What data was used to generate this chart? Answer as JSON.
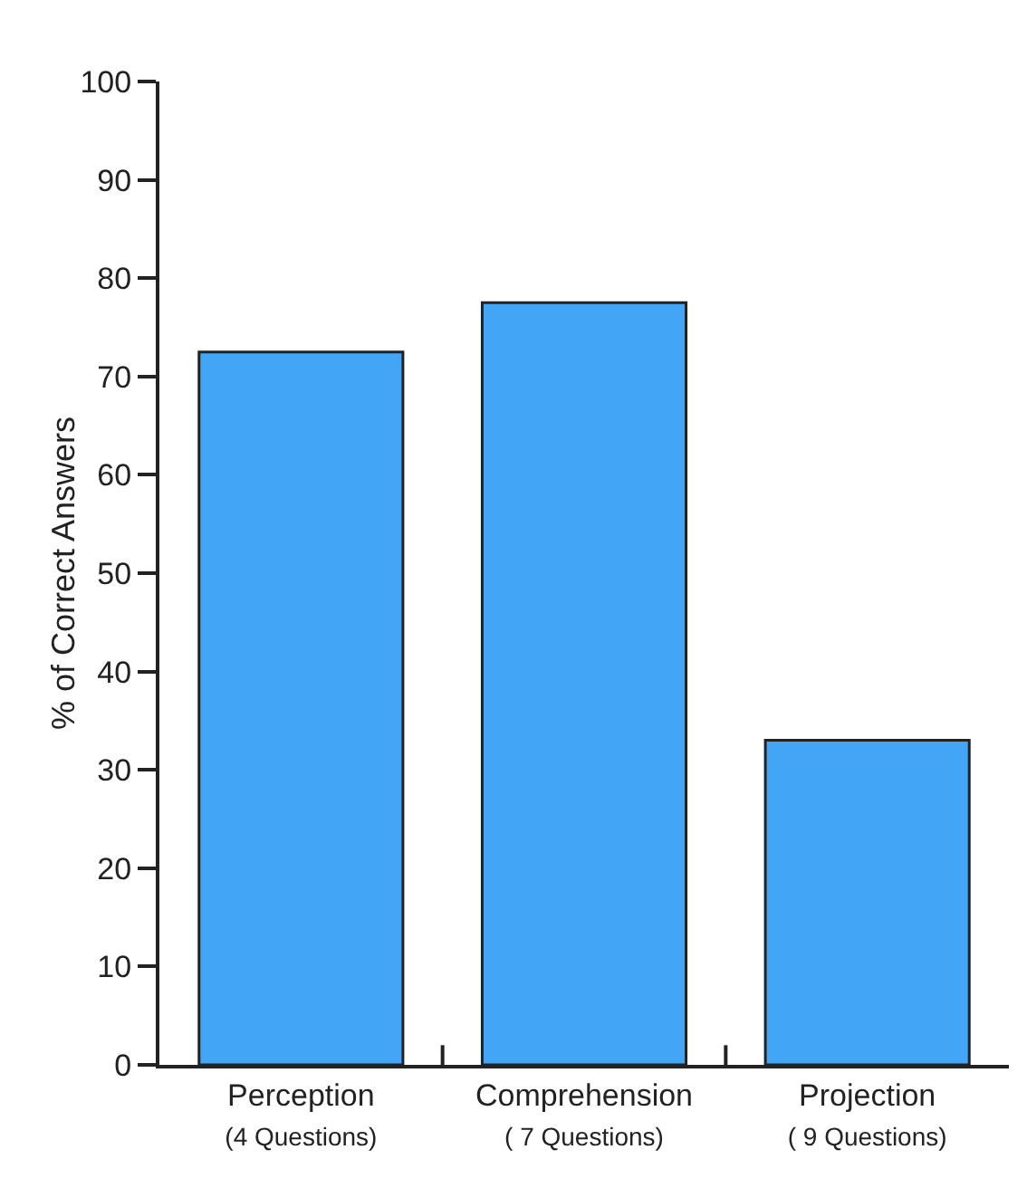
{
  "chart_data": {
    "type": "bar",
    "ylabel": "% of Correct Answers",
    "categories": [
      "Perception\n(4 Questions)",
      "Comprehension\n( 7 Questions)",
      "Projection\n( 9 Questions)"
    ],
    "values": [
      72.5,
      77.5,
      33
    ],
    "color": "#42a5f5",
    "ylim": [
      0,
      100
    ],
    "yticks": [
      0,
      10,
      20,
      30,
      40,
      50,
      60,
      70,
      80,
      90,
      100
    ],
    "grid": false
  }
}
